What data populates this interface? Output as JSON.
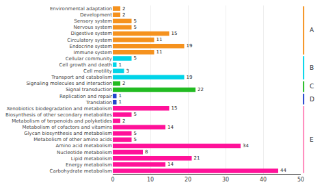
{
  "chart_data": {
    "type": "bar",
    "orientation": "horizontal",
    "categories": [
      "Environmental adaptation",
      "Development",
      "Sensory system",
      "Nervous system",
      "Digestive system",
      "Circulatory system",
      "Endocrine system",
      "Immune system",
      "Cellular community",
      "Cell growth and death",
      "Cell motility",
      "Transport and catabolism",
      "Signaling molecules and interaction",
      "Signal transduction",
      "Replication and repair",
      "Translation",
      "Xenobiotics biodegradation and metabolism",
      "Biosynthesis of other secondary metabolites",
      "Metabolism of terpenoids and polyketides",
      "Metabolism of cofactors and vitamins",
      "Glycan biosynthesis and metabolism",
      "Metabolism of other amino acids",
      "Amino acid metabolism",
      "Nucleotide metabolism",
      "Lipid metabolism",
      "Energy metabolism",
      "Carbohydrate metabolism"
    ],
    "values": [
      2,
      2,
      5,
      5,
      15,
      11,
      19,
      11,
      5,
      1,
      3,
      19,
      2,
      22,
      1,
      1,
      15,
      5,
      2,
      14,
      5,
      5,
      34,
      8,
      21,
      14,
      44
    ],
    "colors": [
      "#f5921e",
      "#f5921e",
      "#f5921e",
      "#f5921e",
      "#f5921e",
      "#f5921e",
      "#f5921e",
      "#f5921e",
      "#00d4e8",
      "#00d4e8",
      "#00d4e8",
      "#00d4e8",
      "#22bb22",
      "#22bb22",
      "#2244cc",
      "#2244cc",
      "#ff1199",
      "#ff1199",
      "#ff1199",
      "#ff1199",
      "#ff1199",
      "#ff1199",
      "#ff1199",
      "#ff1199",
      "#ff1199",
      "#ff1199",
      "#ff1199"
    ],
    "groups": [
      {
        "label": "A",
        "color": "#f5921e",
        "from": "Environmental adaptation",
        "to": "Immune system"
      },
      {
        "label": "B",
        "color": "#00d4e8",
        "from": "Cellular community",
        "to": "Transport and catabolism"
      },
      {
        "label": "C",
        "color": "#22bb22",
        "from": "Signaling molecules and interaction",
        "to": "Signal transduction"
      },
      {
        "label": "D",
        "color": "#2244cc",
        "from": "Replication and repair",
        "to": "Translation"
      },
      {
        "label": "E",
        "color": "#ff88bb",
        "from": "Xenobiotics biodegradation and metabolism",
        "to": "Carbohydrate metabolism"
      }
    ],
    "xlim": [
      0,
      50
    ],
    "xticks": [
      0,
      10,
      20,
      30,
      40,
      50
    ],
    "grid": true,
    "data_labels": true
  }
}
